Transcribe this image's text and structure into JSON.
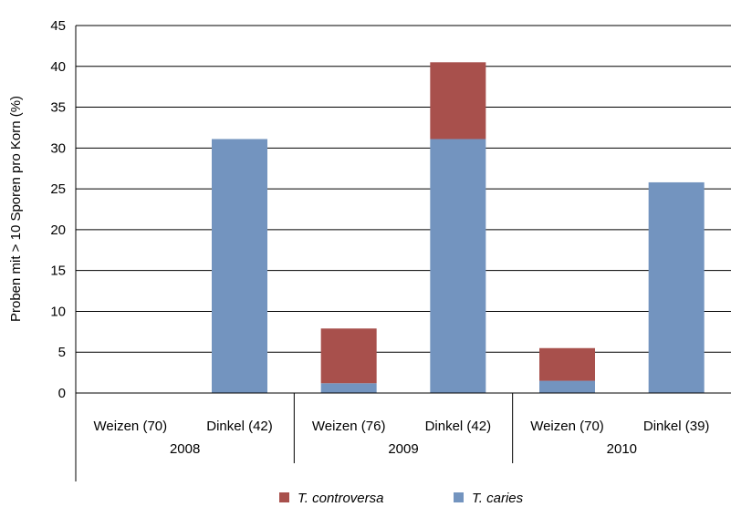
{
  "chart_data": {
    "type": "bar",
    "stacked": true,
    "categories": [
      "Weizen (70)",
      "Dinkel (42)",
      "Weizen (76)",
      "Dinkel (42)",
      "Weizen (70)",
      "Dinkel (39)"
    ],
    "groups": [
      {
        "label": "2008",
        "categories": [
          0,
          1
        ]
      },
      {
        "label": "2009",
        "categories": [
          2,
          3
        ]
      },
      {
        "label": "2010",
        "categories": [
          4,
          5
        ]
      }
    ],
    "series": [
      {
        "name": "T. caries",
        "color": "#7394bf",
        "values": [
          0,
          31.1,
          1.2,
          31.1,
          1.5,
          25.8
        ]
      },
      {
        "name": "T. controversa",
        "color": "#a8504c",
        "values": [
          0,
          0,
          6.7,
          9.4,
          4.0,
          0
        ]
      }
    ],
    "legend_order": [
      1,
      0
    ],
    "legend_position": "bottom",
    "ylabel": "Proben mit  > 10 Sporen pro Korn (%)",
    "xlabel": "",
    "ylim": [
      0,
      45
    ],
    "yticks": [
      0,
      5,
      10,
      15,
      20,
      25,
      30,
      35,
      40,
      45
    ],
    "grid": "horizontal"
  }
}
